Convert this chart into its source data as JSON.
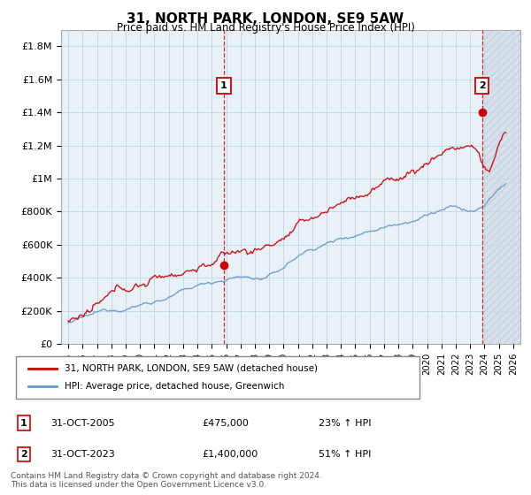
{
  "title": "31, NORTH PARK, LONDON, SE9 5AW",
  "subtitle": "Price paid vs. HM Land Registry's House Price Index (HPI)",
  "ylabel_ticks": [
    "£0",
    "£200K",
    "£400K",
    "£600K",
    "£800K",
    "£1M",
    "£1.2M",
    "£1.4M",
    "£1.6M",
    "£1.8M"
  ],
  "ytick_values": [
    0,
    200000,
    400000,
    600000,
    800000,
    1000000,
    1200000,
    1400000,
    1600000,
    1800000
  ],
  "ylim": [
    0,
    1900000
  ],
  "xlim_start": 1994.5,
  "xlim_end": 2026.5,
  "xtick_years": [
    1995,
    1996,
    1997,
    1998,
    1999,
    2000,
    2001,
    2002,
    2003,
    2004,
    2005,
    2006,
    2007,
    2008,
    2009,
    2010,
    2011,
    2012,
    2013,
    2014,
    2015,
    2016,
    2017,
    2018,
    2019,
    2020,
    2021,
    2022,
    2023,
    2024,
    2025,
    2026
  ],
  "sale1_x": 2005.83,
  "sale1_y": 475000,
  "sale1_label": "1",
  "sale2_x": 2023.83,
  "sale2_y": 1400000,
  "sale2_label": "2",
  "line1_color": "#cc0000",
  "line2_color": "#6699cc",
  "vline_color": "#cc0000",
  "background_color": "#ffffff",
  "grid_color": "#c8d8e8",
  "chart_bg": "#e8f0f8",
  "hatch_color": "#c0ccd8",
  "legend1_label": "31, NORTH PARK, LONDON, SE9 5AW (detached house)",
  "legend2_label": "HPI: Average price, detached house, Greenwich",
  "table_row1": [
    "1",
    "31-OCT-2005",
    "£475,000",
    "23% ↑ HPI"
  ],
  "table_row2": [
    "2",
    "31-OCT-2023",
    "£1,400,000",
    "51% ↑ HPI"
  ],
  "footer": "Contains HM Land Registry data © Crown copyright and database right 2024.\nThis data is licensed under the Open Government Licence v3.0."
}
